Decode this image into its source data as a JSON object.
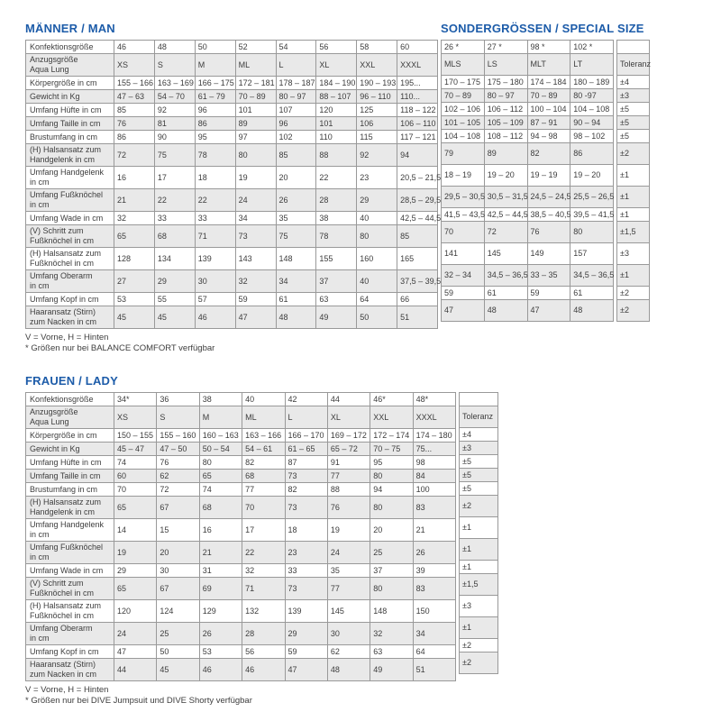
{
  "colors": {
    "accent_blue": "#1d5ca9",
    "row_alt_gray": "#e9e9e9",
    "border_gray": "#999999",
    "text": "#3d3d3d"
  },
  "special": {
    "title": "SONDERGRÖSSEN / SPECIAL SIZE"
  },
  "men": {
    "title": "MÄNNER / MAN",
    "footnote_legend": "V = Vorne, H = Hinten",
    "footnote_sizes": "* Größen nur bei BALANCE COMFORT verfügbar",
    "rows": [
      {
        "label": "Konfektionsgröße",
        "values": [
          "46",
          "48",
          "50",
          "52",
          "54",
          "56",
          "58",
          "60"
        ],
        "special": [
          "26 *",
          "27 *",
          "98 *",
          "102 *"
        ],
        "tolerance": ""
      },
      {
        "label": "Anzugsgröße\nAqua Lung",
        "values": [
          "XS",
          "S",
          "M",
          "ML",
          "L",
          "XL",
          "XXL",
          "XXXL"
        ],
        "special": [
          "MLS",
          "LS",
          "MLT",
          "LT"
        ],
        "tolerance": "Toleranz"
      },
      {
        "label": "Körpergröße in cm",
        "values": [
          "155 – 166",
          "163 – 169",
          "166 – 175",
          "172 – 181",
          "178 – 187",
          "184 – 190",
          "190 – 193",
          "195..."
        ],
        "special": [
          "170 – 175",
          "175 – 180",
          "174 – 184",
          "180 – 189"
        ],
        "tolerance": "±4"
      },
      {
        "label": "Gewicht in Kg",
        "values": [
          "47 – 63",
          "54 – 70",
          "61 – 79",
          "70 – 89",
          "80 – 97",
          "88 – 107",
          "96 – 110",
          "110..."
        ],
        "special": [
          "70 – 89",
          "80 – 97",
          "70 – 89",
          "80 -97"
        ],
        "tolerance": "±3"
      },
      {
        "label": "Umfang Hüfte in cm",
        "values": [
          "85",
          "92",
          "96",
          "101",
          "107",
          "120",
          "125",
          "118 – 122"
        ],
        "special": [
          "102 – 106",
          "106 – 112",
          "100 – 104",
          "104 – 108"
        ],
        "tolerance": "±5"
      },
      {
        "label": "Umfang Taille in cm",
        "values": [
          "76",
          "81",
          "86",
          "89",
          "96",
          "101",
          "106",
          "106 – 110"
        ],
        "special": [
          "101 – 105",
          "105 – 109",
          "87 – 91",
          "90 – 94"
        ],
        "tolerance": "±5"
      },
      {
        "label": "Brustumfang in cm",
        "values": [
          "86",
          "90",
          "95",
          "97",
          "102",
          "110",
          "115",
          "117 – 121"
        ],
        "special": [
          "104 – 108",
          "108 – 112",
          "94 – 98",
          "98 – 102"
        ],
        "tolerance": "±5"
      },
      {
        "label": "(H) Halsansatz zum\nHandgelenk in cm",
        "values": [
          "72",
          "75",
          "78",
          "80",
          "85",
          "88",
          "92",
          "94"
        ],
        "special": [
          "79",
          "89",
          "82",
          "86"
        ],
        "tolerance": "±2"
      },
      {
        "label": "Umfang Handgelenk\nin cm",
        "values": [
          "16",
          "17",
          "18",
          "19",
          "20",
          "22",
          "23",
          "20,5 – 21,5"
        ],
        "special": [
          "18 – 19",
          "19 – 20",
          "19 – 19",
          "19 – 20"
        ],
        "tolerance": "±1"
      },
      {
        "label": "Umfang Fußknöchel\nin cm",
        "values": [
          "21",
          "22",
          "22",
          "24",
          "26",
          "28",
          "29",
          "28,5 – 29,5"
        ],
        "special": [
          "29,5 – 30,5",
          "30,5 – 31,5",
          "24,5 – 24,5",
          "25,5 – 26,5"
        ],
        "tolerance": "±1"
      },
      {
        "label": "Umfang Wade in cm",
        "values": [
          "32",
          "33",
          "33",
          "34",
          "35",
          "38",
          "40",
          "42,5 – 44,5"
        ],
        "special": [
          "41,5 – 43,5",
          "42,5 – 44,5",
          "38,5 – 40,5",
          "39,5 – 41,5"
        ],
        "tolerance": "±1"
      },
      {
        "label": "(V) Schritt zum\nFußknöchel in cm",
        "values": [
          "65",
          "68",
          "71",
          "73",
          "75",
          "78",
          "80",
          "85"
        ],
        "special": [
          "70",
          "72",
          "76",
          "80"
        ],
        "tolerance": "±1,5"
      },
      {
        "label": "(H) Halsansatz zum\nFußknöchel in cm",
        "values": [
          "128",
          "134",
          "139",
          "143",
          "148",
          "155",
          "160",
          "165"
        ],
        "special": [
          "141",
          "145",
          "149",
          "157"
        ],
        "tolerance": "±3"
      },
      {
        "label": "Umfang Oberarm\nin cm",
        "values": [
          "27",
          "29",
          "30",
          "32",
          "34",
          "37",
          "40",
          "37,5 – 39,5"
        ],
        "special": [
          "32 – 34",
          "34,5 – 36,5",
          "33 – 35",
          "34,5 – 36,5"
        ],
        "tolerance": "±1"
      },
      {
        "label": "Umfang Kopf in cm",
        "values": [
          "53",
          "55",
          "57",
          "59",
          "61",
          "63",
          "64",
          "66"
        ],
        "special": [
          "59",
          "61",
          "59",
          "61"
        ],
        "tolerance": "±2"
      },
      {
        "label": "Haaransatz (Stirn)\nzum Nacken in cm",
        "values": [
          "45",
          "45",
          "46",
          "47",
          "48",
          "49",
          "50",
          "51"
        ],
        "special": [
          "47",
          "48",
          "47",
          "48"
        ],
        "tolerance": "±2"
      }
    ]
  },
  "women": {
    "title": "FRAUEN / LADY",
    "footnote_legend": "V = Vorne, H = Hinten",
    "footnote_sizes": "* Größen nur bei DIVE Jumpsuit und DIVE Shorty verfügbar",
    "rows": [
      {
        "label": "Konfektionsgröße",
        "values": [
          "34*",
          "36",
          "38",
          "40",
          "42",
          "44",
          "46*",
          "48*"
        ],
        "tolerance": ""
      },
      {
        "label": "Anzugsgröße\nAqua Lung",
        "values": [
          "XS",
          "S",
          "M",
          "ML",
          "L",
          "XL",
          "XXL",
          "XXXL"
        ],
        "tolerance": "Toleranz"
      },
      {
        "label": "Körpergröße in cm",
        "values": [
          "150 – 155",
          "155 – 160",
          "160 – 163",
          "163 – 166",
          "166 – 170",
          "169 – 172",
          "172 – 174",
          "174 – 180"
        ],
        "tolerance": "±4"
      },
      {
        "label": "Gewicht in Kg",
        "values": [
          "45 – 47",
          "47 – 50",
          "50 – 54",
          "54 – 61",
          "61 – 65",
          "65 – 72",
          "70 – 75",
          "75..."
        ],
        "tolerance": "±3"
      },
      {
        "label": "Umfang Hüfte in cm",
        "values": [
          "74",
          "76",
          "80",
          "82",
          "87",
          "91",
          "95",
          "98"
        ],
        "tolerance": "±5"
      },
      {
        "label": "Umfang Taille in cm",
        "values": [
          "60",
          "62",
          "65",
          "68",
          "73",
          "77",
          "80",
          "84"
        ],
        "tolerance": "±5"
      },
      {
        "label": "Brustumfang in cm",
        "values": [
          "70",
          "72",
          "74",
          "77",
          "82",
          "88",
          "94",
          "100"
        ],
        "tolerance": "±5"
      },
      {
        "label": "(H) Halsansatz zum\nHandgelenk in cm",
        "values": [
          "65",
          "67",
          "68",
          "70",
          "73",
          "76",
          "80",
          "83"
        ],
        "tolerance": "±2"
      },
      {
        "label": "Umfang Handgelenk\nin cm",
        "values": [
          "14",
          "15",
          "16",
          "17",
          "18",
          "19",
          "20",
          "21"
        ],
        "tolerance": "±1"
      },
      {
        "label": "Umfang Fußknöchel\nin cm",
        "values": [
          "19",
          "20",
          "21",
          "22",
          "23",
          "24",
          "25",
          "26"
        ],
        "tolerance": "±1"
      },
      {
        "label": "Umfang Wade in cm",
        "values": [
          "29",
          "30",
          "31",
          "32",
          "33",
          "35",
          "37",
          "39"
        ],
        "tolerance": "±1"
      },
      {
        "label": "(V) Schritt zum\nFußknöchel in cm",
        "values": [
          "65",
          "67",
          "69",
          "71",
          "73",
          "77",
          "80",
          "83"
        ],
        "tolerance": "±1,5"
      },
      {
        "label": "(H) Halsansatz zum\nFußknöchel in cm",
        "values": [
          "120",
          "124",
          "129",
          "132",
          "139",
          "145",
          "148",
          "150"
        ],
        "tolerance": "±3"
      },
      {
        "label": "Umfang Oberarm\nin cm",
        "values": [
          "24",
          "25",
          "26",
          "28",
          "29",
          "30",
          "32",
          "34"
        ],
        "tolerance": "±1"
      },
      {
        "label": "Umfang Kopf in cm",
        "values": [
          "47",
          "50",
          "53",
          "56",
          "59",
          "62",
          "63",
          "64"
        ],
        "tolerance": "±2"
      },
      {
        "label": "Haaransatz (Stirn)\nzum Nacken in cm",
        "values": [
          "44",
          "45",
          "46",
          "46",
          "47",
          "48",
          "49",
          "51"
        ],
        "tolerance": "±2"
      }
    ]
  }
}
